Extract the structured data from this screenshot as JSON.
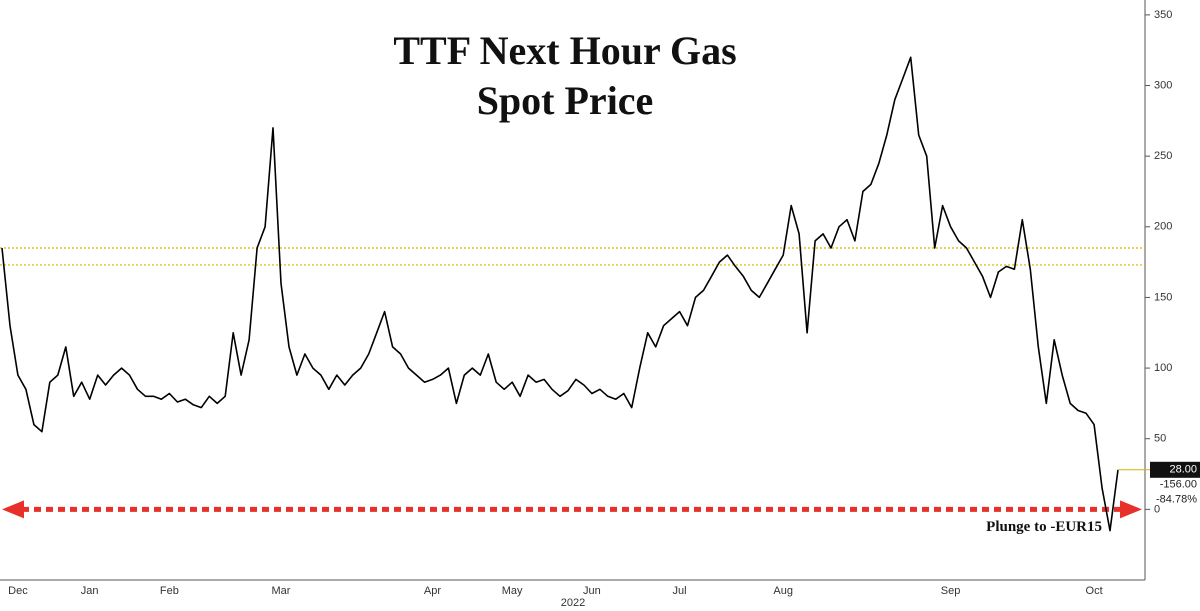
{
  "chart_data": {
    "type": "line",
    "title": [
      "TTF Next Hour Gas",
      "Spot Price"
    ],
    "x_label": "2022",
    "categories": [
      null,
      null,
      "Dec",
      null,
      null,
      null,
      null,
      null,
      null,
      null,
      null,
      "Jan",
      null,
      null,
      null,
      null,
      null,
      null,
      null,
      null,
      null,
      "Feb",
      null,
      null,
      null,
      null,
      null,
      null,
      null,
      null,
      null,
      null,
      null,
      null,
      null,
      "Mar",
      null,
      null,
      null,
      null,
      null,
      null,
      null,
      null,
      null,
      null,
      null,
      null,
      null,
      null,
      null,
      null,
      null,
      null,
      "Apr",
      null,
      null,
      null,
      null,
      null,
      null,
      null,
      null,
      null,
      "May",
      null,
      null,
      null,
      null,
      null,
      null,
      null,
      null,
      null,
      "Jun",
      null,
      null,
      null,
      null,
      null,
      null,
      null,
      null,
      null,
      null,
      "Jul",
      null,
      null,
      null,
      null,
      null,
      null,
      null,
      null,
      null,
      null,
      null,
      null,
      "Aug",
      null,
      null,
      null,
      null,
      null,
      null,
      null,
      null,
      null,
      null,
      null,
      null,
      null,
      null,
      null,
      null,
      null,
      null,
      null,
      null,
      "Sep",
      null,
      null,
      null,
      null,
      null,
      null,
      null,
      null,
      null,
      null,
      null,
      null,
      null,
      null,
      null,
      null,
      null,
      "Oct",
      null,
      null,
      null
    ],
    "series": [
      {
        "name": "TTF Next Hour Gas",
        "color": "#000000",
        "values": [
          185,
          130,
          95,
          85,
          60,
          55,
          90,
          95,
          115,
          80,
          90,
          78,
          95,
          88,
          95,
          100,
          95,
          85,
          80,
          80,
          78,
          82,
          76,
          78,
          74,
          72,
          80,
          75,
          80,
          125,
          95,
          120,
          185,
          200,
          270,
          160,
          115,
          95,
          110,
          100,
          95,
          85,
          95,
          88,
          95,
          100,
          110,
          125,
          140,
          115,
          110,
          100,
          95,
          90,
          92,
          95,
          100,
          75,
          95,
          100,
          95,
          110,
          90,
          85,
          90,
          80,
          95,
          90,
          92,
          85,
          80,
          84,
          92,
          88,
          82,
          85,
          80,
          78,
          82,
          72,
          100,
          125,
          115,
          130,
          135,
          140,
          130,
          150,
          155,
          165,
          175,
          180,
          172,
          165,
          155,
          150,
          160,
          170,
          180,
          215,
          195,
          125,
          190,
          195,
          185,
          200,
          205,
          190,
          225,
          230,
          245,
          265,
          290,
          305,
          320,
          265,
          250,
          185,
          215,
          200,
          190,
          185,
          175,
          165,
          150,
          168,
          172,
          170,
          205,
          170,
          115,
          75,
          120,
          95,
          75,
          70,
          68,
          60,
          15,
          -15,
          28
        ]
      }
    ],
    "ylim": [
      -50,
      357
    ],
    "yticks": [
      0,
      50,
      100,
      150,
      200,
      250,
      300,
      350
    ],
    "ref_lines": [
      185,
      173
    ],
    "ref_color": "#d4b800",
    "annotation": "Plunge to -EUR15",
    "annotation_level": 0,
    "annotation_color": "#e8302a",
    "readouts": [
      "28.00",
      "-156.00",
      "-84.78%"
    ]
  }
}
